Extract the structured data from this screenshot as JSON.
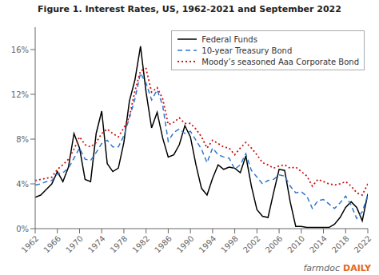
{
  "chart_data": {
    "type": "line",
    "title": "Figure 1.  Interest Rates, US, 1962-2021 and September 2022",
    "x": [
      1962,
      1963,
      1964,
      1965,
      1966,
      1967,
      1968,
      1969,
      1970,
      1971,
      1972,
      1973,
      1974,
      1975,
      1976,
      1977,
      1978,
      1979,
      1980,
      1981,
      1982,
      1983,
      1984,
      1985,
      1986,
      1987,
      1988,
      1989,
      1990,
      1991,
      1992,
      1993,
      1994,
      1995,
      1996,
      1997,
      1998,
      1999,
      2000,
      2001,
      2002,
      2003,
      2004,
      2005,
      2006,
      2007,
      2008,
      2009,
      2010,
      2011,
      2012,
      2013,
      2014,
      2015,
      2016,
      2017,
      2018,
      2019,
      2020,
      2021,
      2022
    ],
    "series": [
      {
        "name": "Federal Funds",
        "color": "#000000",
        "line_style": "solid",
        "values": [
          0.028,
          0.03,
          0.035,
          0.04,
          0.051,
          0.042,
          0.055,
          0.085,
          0.072,
          0.044,
          0.042,
          0.085,
          0.105,
          0.058,
          0.051,
          0.054,
          0.077,
          0.114,
          0.133,
          0.163,
          0.122,
          0.09,
          0.104,
          0.081,
          0.064,
          0.066,
          0.075,
          0.092,
          0.082,
          0.057,
          0.036,
          0.03,
          0.045,
          0.057,
          0.053,
          0.055,
          0.054,
          0.05,
          0.065,
          0.038,
          0.017,
          0.011,
          0.01,
          0.032,
          0.053,
          0.052,
          0.024,
          0.002,
          0.002,
          0.001,
          0.001,
          0.001,
          0.001,
          0.001,
          0.004,
          0.01,
          0.019,
          0.024,
          0.019,
          0.007,
          0.031
        ]
      },
      {
        "name": "10-year Treasury Bond",
        "color": "#3377cc",
        "line_style": "dashed",
        "values": [
          0.039,
          0.04,
          0.042,
          0.043,
          0.049,
          0.05,
          0.054,
          0.063,
          0.072,
          0.062,
          0.061,
          0.068,
          0.076,
          0.079,
          0.073,
          0.073,
          0.083,
          0.099,
          0.116,
          0.139,
          0.13,
          0.115,
          0.124,
          0.11,
          0.078,
          0.086,
          0.089,
          0.085,
          0.087,
          0.079,
          0.071,
          0.059,
          0.072,
          0.066,
          0.064,
          0.063,
          0.053,
          0.057,
          0.067,
          0.052,
          0.046,
          0.04,
          0.043,
          0.044,
          0.048,
          0.047,
          0.038,
          0.032,
          0.033,
          0.029,
          0.018,
          0.025,
          0.026,
          0.022,
          0.018,
          0.023,
          0.029,
          0.021,
          0.009,
          0.015,
          0.03
        ]
      },
      {
        "name": "Moody’s seasoned Aaa Corporate Bond",
        "color": "#cc1111",
        "line_style": "dotted",
        "values": [
          0.043,
          0.044,
          0.045,
          0.046,
          0.053,
          0.057,
          0.062,
          0.071,
          0.082,
          0.075,
          0.073,
          0.077,
          0.085,
          0.089,
          0.085,
          0.082,
          0.09,
          0.1,
          0.123,
          0.141,
          0.143,
          0.122,
          0.126,
          0.116,
          0.093,
          0.095,
          0.099,
          0.094,
          0.094,
          0.089,
          0.082,
          0.072,
          0.079,
          0.076,
          0.073,
          0.072,
          0.066,
          0.072,
          0.077,
          0.072,
          0.066,
          0.059,
          0.057,
          0.054,
          0.056,
          0.057,
          0.054,
          0.055,
          0.051,
          0.047,
          0.038,
          0.044,
          0.042,
          0.04,
          0.039,
          0.04,
          0.042,
          0.038,
          0.032,
          0.03,
          0.04
        ]
      }
    ],
    "xlim": [
      1962,
      2022
    ],
    "ylim": [
      0,
      0.18
    ],
    "xticks": [
      1962,
      1966,
      1970,
      1974,
      1978,
      1982,
      1986,
      1990,
      1994,
      1998,
      2002,
      2006,
      2010,
      2014,
      2018,
      2022
    ],
    "yticks": [
      {
        "value": 0,
        "label": "0%"
      },
      {
        "value": 0.04,
        "label": "4%"
      },
      {
        "value": 0.08,
        "label": "8%"
      },
      {
        "value": 0.12,
        "label": "12%"
      },
      {
        "value": 0.16,
        "label": "16%"
      }
    ],
    "grid": false,
    "legend": "upper right",
    "annotations": [
      {
        "text": "farmdoc",
        "color": "#666666"
      },
      {
        "text": "DAILY",
        "color": "#e06820"
      }
    ]
  }
}
